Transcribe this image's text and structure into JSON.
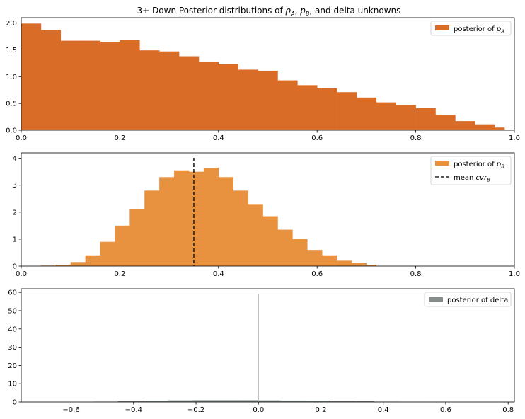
{
  "figure": {
    "title_prefix": "3+ Down Posterior distributions of ",
    "title_pA": "p",
    "title_pA_sub": "A",
    "title_sep1": ", ",
    "title_pB": "p",
    "title_pB_sub": "B",
    "title_suffix": ", and delta unknowns"
  },
  "chart_data": [
    {
      "type": "bar",
      "subtype": "histogram",
      "color": "#D96C26",
      "xlim": [
        0,
        1.0
      ],
      "ylim": [
        0,
        2.1
      ],
      "xticks": [
        "0.0",
        "0.2",
        "0.4",
        "0.6",
        "0.8",
        "1.0"
      ],
      "yticks": [
        "0.0",
        "0.5",
        "1.0",
        "1.5",
        "2.0"
      ],
      "bin_edges": [
        0.0,
        0.04,
        0.08,
        0.12,
        0.16,
        0.2,
        0.24,
        0.28,
        0.32,
        0.36,
        0.4,
        0.44,
        0.48,
        0.52,
        0.56,
        0.6,
        0.64,
        0.68,
        0.72,
        0.76,
        0.8,
        0.84,
        0.88,
        0.92,
        0.96,
        0.98
      ],
      "values": [
        1.99,
        1.87,
        1.67,
        1.67,
        1.65,
        1.68,
        1.49,
        1.47,
        1.38,
        1.27,
        1.23,
        1.13,
        1.11,
        0.93,
        0.84,
        0.78,
        0.71,
        0.61,
        0.52,
        0.47,
        0.41,
        0.29,
        0.17,
        0.11,
        0.05
      ],
      "legend": {
        "label_prefix": "posterior of ",
        "label_var": "p",
        "label_sub": "A",
        "placement": "top-right"
      }
    },
    {
      "type": "bar",
      "subtype": "histogram",
      "color": "#E8913F",
      "xlim": [
        0,
        1.0
      ],
      "ylim": [
        0,
        4.2
      ],
      "xticks": [
        "0.0",
        "0.2",
        "0.4",
        "0.6",
        "0.8",
        "1.0"
      ],
      "yticks": [
        "0",
        "1",
        "2",
        "3",
        "4"
      ],
      "bin_edges": [
        0.04,
        0.07,
        0.1,
        0.13,
        0.16,
        0.19,
        0.22,
        0.25,
        0.28,
        0.31,
        0.34,
        0.37,
        0.4,
        0.43,
        0.46,
        0.49,
        0.52,
        0.55,
        0.58,
        0.61,
        0.64,
        0.67,
        0.7,
        0.72
      ],
      "values": [
        0.02,
        0.05,
        0.15,
        0.4,
        0.9,
        1.5,
        2.1,
        2.8,
        3.3,
        3.55,
        3.5,
        3.65,
        3.3,
        2.8,
        2.3,
        1.85,
        1.35,
        1.0,
        0.6,
        0.4,
        0.2,
        0.12,
        0.05
      ],
      "mean_line": 0.35,
      "legend": {
        "label_prefix": "posterior of ",
        "label_var": "p",
        "label_sub": "B",
        "mean_prefix": "mean ",
        "mean_var": "cvr",
        "mean_sub": "B",
        "placement": "top-right"
      }
    },
    {
      "type": "bar",
      "subtype": "histogram",
      "color": "#858C89",
      "xlim": [
        -0.76,
        0.82
      ],
      "ylim": [
        0,
        62
      ],
      "xticks": [
        "−0.6",
        "−0.4",
        "−0.2",
        "0.0",
        "0.2",
        "0.4",
        "0.6",
        "0.8"
      ],
      "yticks": [
        "0",
        "10",
        "20",
        "30",
        "40",
        "50",
        "60"
      ],
      "bin_edges": [
        -0.53,
        -0.45,
        -0.37,
        -0.29,
        -0.21,
        -0.13,
        -0.05,
        0.0,
        0.07,
        0.15,
        0.23,
        0.31,
        0.37,
        0.45,
        0.53,
        0.61
      ],
      "values": [
        0.2,
        0.4,
        0.7,
        0.9,
        1.0,
        1.0,
        1.0,
        0.9,
        0.8,
        0.7,
        0.5,
        0.4,
        0.2,
        0.1,
        0.05
      ],
      "vline": 0.0,
      "legend": {
        "label": "posterior of delta",
        "placement": "top-right"
      }
    }
  ]
}
